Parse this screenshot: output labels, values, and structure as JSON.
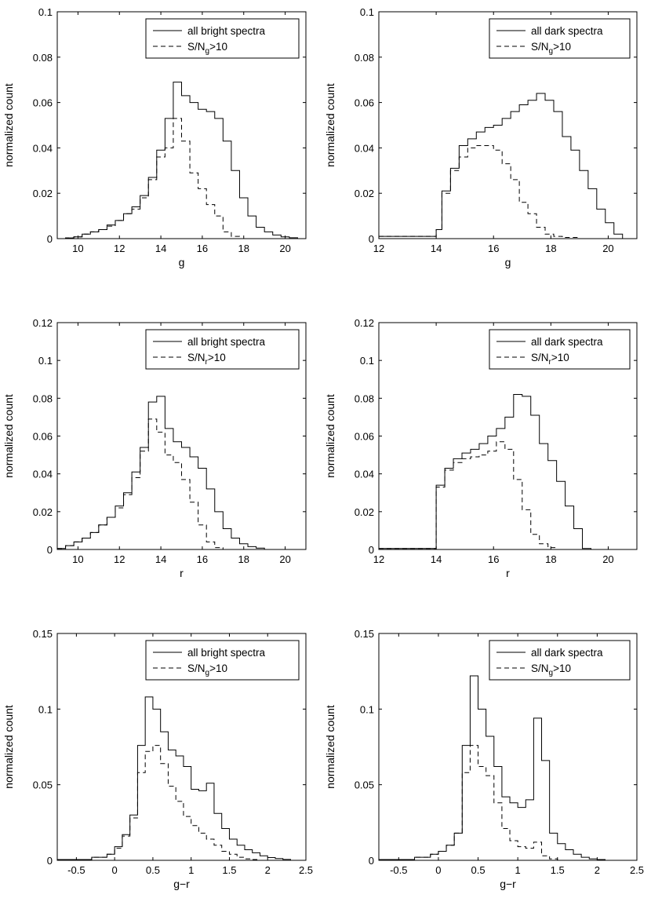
{
  "figure": {
    "width": 830,
    "height": 1144
  },
  "chart_data": [
    {
      "type": "histogram",
      "id": "g-bright",
      "xlabel": "g",
      "ylabel": "normalized count",
      "xlim": [
        9,
        21
      ],
      "ylim": [
        0,
        0.1
      ],
      "xticks": [
        10,
        12,
        14,
        16,
        18,
        20
      ],
      "xtick_labels": [
        "10",
        "12",
        "14",
        "16",
        "18",
        "20"
      ],
      "yticks": [
        0,
        0.02,
        0.04,
        0.06,
        0.08,
        0.1
      ],
      "ytick_labels": [
        "0",
        "0.02",
        "0.04",
        "0.06",
        "0.08",
        "0.1"
      ],
      "legend": {
        "placement": "top-right",
        "entries": [
          {
            "style": "solid",
            "text": "all bright spectra"
          },
          {
            "style": "dashed",
            "text": "S/N",
            "sub": "g",
            "suffix": ">10"
          }
        ]
      },
      "series": [
        {
          "name": "all bright spectra",
          "style": "solid",
          "edges": [
            9,
            9.4,
            9.8,
            10.2,
            10.6,
            11,
            11.4,
            11.8,
            12.2,
            12.6,
            13,
            13.4,
            13.8,
            14.2,
            14.6,
            15,
            15.4,
            15.8,
            16.2,
            16.6,
            17,
            17.4,
            17.8,
            18.2,
            18.6,
            19,
            19.4,
            19.8,
            20.2,
            20.6,
            21
          ],
          "values": [
            0,
            0.0003,
            0.0008,
            0.002,
            0.003,
            0.004,
            0.006,
            0.008,
            0.011,
            0.014,
            0.019,
            0.027,
            0.039,
            0.053,
            0.069,
            0.063,
            0.06,
            0.057,
            0.056,
            0.053,
            0.043,
            0.03,
            0.018,
            0.01,
            0.005,
            0.003,
            0.0016,
            0.0008,
            0.0004,
            0
          ]
        },
        {
          "name": "S/Ng>10",
          "style": "dashed",
          "edges": [
            9,
            9.4,
            9.8,
            10.2,
            10.6,
            11,
            11.4,
            11.8,
            12.2,
            12.6,
            13,
            13.4,
            13.8,
            14.2,
            14.6,
            15,
            15.4,
            15.8,
            16.2,
            16.6,
            17,
            17.4,
            17.8,
            18.2,
            18.6,
            19,
            19.4,
            19.8,
            20.2,
            20.6,
            21
          ],
          "values": [
            0,
            0.0003,
            0.0008,
            0.002,
            0.003,
            0.004,
            0.0055,
            0.008,
            0.011,
            0.013,
            0.018,
            0.026,
            0.036,
            0.04,
            0.053,
            0.043,
            0.029,
            0.022,
            0.015,
            0.01,
            0.003,
            0.001,
            0,
            0,
            0,
            0,
            0,
            0,
            0,
            0
          ]
        }
      ]
    },
    {
      "type": "histogram",
      "id": "g-dark",
      "xlabel": "g",
      "ylabel": "normalized count",
      "xlim": [
        12,
        21
      ],
      "ylim": [
        0,
        0.1
      ],
      "xticks": [
        12,
        14,
        16,
        18,
        20
      ],
      "xtick_labels": [
        "12",
        "14",
        "16",
        "18",
        "20"
      ],
      "yticks": [
        0,
        0.02,
        0.04,
        0.06,
        0.08,
        0.1
      ],
      "ytick_labels": [
        "0",
        "0.02",
        "0.04",
        "0.06",
        "0.08",
        "0.1"
      ],
      "legend": {
        "placement": "top-right",
        "entries": [
          {
            "style": "solid",
            "text": "all dark spectra"
          },
          {
            "style": "dashed",
            "text": "S/N",
            "sub": "g",
            "suffix": ">10"
          }
        ]
      },
      "series": [
        {
          "name": "all dark spectra",
          "style": "solid",
          "edges": [
            12,
            14,
            14.2,
            14.5,
            14.8,
            15.1,
            15.4,
            15.7,
            16,
            16.3,
            16.6,
            16.9,
            17.2,
            17.5,
            17.8,
            18.1,
            18.4,
            18.7,
            19,
            19.3,
            19.6,
            19.9,
            20.2,
            20.5,
            20.8,
            21
          ],
          "values": [
            0.001,
            0.004,
            0.021,
            0.031,
            0.041,
            0.044,
            0.047,
            0.049,
            0.05,
            0.053,
            0.056,
            0.059,
            0.061,
            0.064,
            0.061,
            0.056,
            0.045,
            0.039,
            0.03,
            0.022,
            0.013,
            0.007,
            0.002,
            0,
            0
          ]
        },
        {
          "name": "S/Ng>10",
          "style": "dashed",
          "edges": [
            12,
            14,
            14.2,
            14.5,
            14.8,
            15.1,
            15.4,
            15.7,
            16,
            16.3,
            16.6,
            16.9,
            17.2,
            17.5,
            17.8,
            18.1,
            18.4,
            18.7,
            19,
            19.3,
            19.6,
            19.9,
            20.2,
            20.5,
            20.8,
            21
          ],
          "values": [
            0.001,
            0.004,
            0.02,
            0.03,
            0.036,
            0.04,
            0.041,
            0.041,
            0.039,
            0.033,
            0.026,
            0.016,
            0.011,
            0.005,
            0.002,
            0.001,
            0.0005,
            0.0005,
            0,
            0,
            0,
            0,
            0,
            0,
            0
          ]
        }
      ]
    },
    {
      "type": "histogram",
      "id": "r-bright",
      "xlabel": "r",
      "ylabel": "normalized count",
      "xlim": [
        9,
        21
      ],
      "ylim": [
        0,
        0.12
      ],
      "xticks": [
        10,
        12,
        14,
        16,
        18,
        20
      ],
      "xtick_labels": [
        "10",
        "12",
        "14",
        "16",
        "18",
        "20"
      ],
      "yticks": [
        0,
        0.02,
        0.04,
        0.06,
        0.08,
        0.1,
        0.12
      ],
      "ytick_labels": [
        "0",
        "0.02",
        "0.04",
        "0.06",
        "0.08",
        "0.1",
        "0.12"
      ],
      "legend": {
        "placement": "top-right",
        "entries": [
          {
            "style": "solid",
            "text": "all bright spectra"
          },
          {
            "style": "dashed",
            "text": "S/N",
            "sub": "r",
            "suffix": ">10"
          }
        ]
      },
      "series": [
        {
          "name": "all bright spectra",
          "style": "solid",
          "edges": [
            9,
            9.4,
            9.8,
            10.2,
            10.6,
            11,
            11.4,
            11.8,
            12.2,
            12.6,
            13,
            13.4,
            13.8,
            14.2,
            14.6,
            15,
            15.4,
            15.8,
            16.2,
            16.6,
            17,
            17.4,
            17.8,
            18.2,
            18.6,
            19,
            19.4,
            19.8,
            20.2,
            20.6,
            21
          ],
          "values": [
            0.0005,
            0.002,
            0.004,
            0.006,
            0.009,
            0.013,
            0.017,
            0.023,
            0.03,
            0.041,
            0.054,
            0.078,
            0.081,
            0.064,
            0.057,
            0.054,
            0.049,
            0.043,
            0.032,
            0.02,
            0.011,
            0.006,
            0.003,
            0.0015,
            0.0007,
            0,
            0,
            0,
            0,
            0
          ]
        },
        {
          "name": "S/Nr>10",
          "style": "dashed",
          "edges": [
            9,
            9.4,
            9.8,
            10.2,
            10.6,
            11,
            11.4,
            11.8,
            12.2,
            12.6,
            13,
            13.4,
            13.8,
            14.2,
            14.6,
            15,
            15.4,
            15.8,
            16.2,
            16.6,
            17,
            17.4,
            17.8,
            18.2,
            18.6,
            19,
            19.4,
            19.8,
            20.2,
            20.6,
            21
          ],
          "values": [
            0.0005,
            0.002,
            0.004,
            0.006,
            0.009,
            0.013,
            0.017,
            0.022,
            0.029,
            0.038,
            0.052,
            0.069,
            0.062,
            0.05,
            0.046,
            0.037,
            0.025,
            0.013,
            0.004,
            0.001,
            0,
            0,
            0,
            0,
            0,
            0,
            0,
            0,
            0,
            0
          ]
        }
      ]
    },
    {
      "type": "histogram",
      "id": "r-dark",
      "xlabel": "r",
      "ylabel": "normalized count",
      "xlim": [
        12,
        21
      ],
      "ylim": [
        0,
        0.12
      ],
      "xticks": [
        12,
        14,
        16,
        18,
        20
      ],
      "xtick_labels": [
        "12",
        "14",
        "16",
        "18",
        "20"
      ],
      "yticks": [
        0,
        0.02,
        0.04,
        0.06,
        0.08,
        0.1,
        0.12
      ],
      "ytick_labels": [
        "0",
        "0.02",
        "0.04",
        "0.06",
        "0.08",
        "0.1",
        "0.12"
      ],
      "legend": {
        "placement": "top-right",
        "entries": [
          {
            "style": "solid",
            "text": "all dark spectra"
          },
          {
            "style": "dashed",
            "text": "S/N",
            "sub": "r",
            "suffix": ">10"
          }
        ]
      },
      "series": [
        {
          "name": "all dark spectra",
          "style": "solid",
          "edges": [
            12,
            14,
            14.3,
            14.6,
            14.9,
            15.2,
            15.5,
            15.8,
            16.1,
            16.4,
            16.7,
            17,
            17.3,
            17.6,
            17.9,
            18.2,
            18.5,
            18.8,
            19.1,
            19.4,
            21
          ],
          "values": [
            0.0005,
            0.034,
            0.043,
            0.048,
            0.051,
            0.053,
            0.056,
            0.06,
            0.064,
            0.07,
            0.082,
            0.081,
            0.071,
            0.056,
            0.047,
            0.036,
            0.023,
            0.011,
            0.0005,
            0
          ]
        },
        {
          "name": "S/Nr>10",
          "style": "dashed",
          "edges": [
            12,
            14,
            14.3,
            14.6,
            14.9,
            15.2,
            15.5,
            15.8,
            16.1,
            16.4,
            16.7,
            17,
            17.3,
            17.6,
            17.9,
            18.2,
            18.5,
            18.8,
            19.1,
            19.4,
            21
          ],
          "values": [
            0.0005,
            0.033,
            0.042,
            0.046,
            0.048,
            0.049,
            0.05,
            0.052,
            0.057,
            0.053,
            0.037,
            0.021,
            0.008,
            0.003,
            0.001,
            0,
            0,
            0,
            0,
            0
          ]
        }
      ]
    },
    {
      "type": "histogram",
      "id": "gr-bright",
      "xlabel": "g−r",
      "ylabel": "normalized count",
      "xlim": [
        -0.75,
        2.5
      ],
      "ylim": [
        0,
        0.15
      ],
      "xticks": [
        -0.5,
        0,
        0.5,
        1,
        1.5,
        2,
        2.5
      ],
      "xtick_labels": [
        "-0.5",
        "0",
        "0.5",
        "1",
        "1.5",
        "2",
        "2.5"
      ],
      "yticks": [
        0,
        0.05,
        0.1,
        0.15
      ],
      "ytick_labels": [
        "0",
        "0.05",
        "0.1",
        "0.15"
      ],
      "legend": {
        "placement": "top-right",
        "entries": [
          {
            "style": "solid",
            "text": "all bright spectra"
          },
          {
            "style": "dashed",
            "text": "S/N",
            "sub": "g",
            "suffix": ">10"
          }
        ]
      },
      "series": [
        {
          "name": "all bright spectra",
          "style": "solid",
          "edges": [
            -0.75,
            -0.3,
            -0.1,
            0,
            0.1,
            0.2,
            0.3,
            0.4,
            0.5,
            0.6,
            0.7,
            0.8,
            0.9,
            1,
            1.1,
            1.2,
            1.3,
            1.4,
            1.5,
            1.6,
            1.7,
            1.8,
            1.9,
            2,
            2.1,
            2.2,
            2.3,
            2.5
          ],
          "values": [
            0.0005,
            0.002,
            0.004,
            0.009,
            0.017,
            0.03,
            0.076,
            0.108,
            0.1,
            0.085,
            0.073,
            0.069,
            0.062,
            0.047,
            0.046,
            0.051,
            0.031,
            0.021,
            0.014,
            0.01,
            0.007,
            0.005,
            0.003,
            0.0018,
            0.0012,
            0.0006,
            0
          ]
        },
        {
          "name": "S/Ng>10",
          "style": "dashed",
          "edges": [
            -0.75,
            -0.3,
            -0.1,
            0,
            0.1,
            0.2,
            0.3,
            0.4,
            0.5,
            0.6,
            0.7,
            0.8,
            0.9,
            1,
            1.1,
            1.2,
            1.3,
            1.4,
            1.5,
            1.6,
            1.7,
            1.8,
            1.9,
            2,
            2.1,
            2.2,
            2.3,
            2.5
          ],
          "values": [
            0.0005,
            0.002,
            0.004,
            0.008,
            0.016,
            0.028,
            0.058,
            0.072,
            0.076,
            0.064,
            0.049,
            0.039,
            0.029,
            0.023,
            0.018,
            0.014,
            0.01,
            0.006,
            0.004,
            0.002,
            0.001,
            0.0005,
            0,
            0,
            0,
            0,
            0
          ]
        }
      ]
    },
    {
      "type": "histogram",
      "id": "gr-dark",
      "xlabel": "g−r",
      "ylabel": "normalized count",
      "xlim": [
        -0.75,
        2.5
      ],
      "ylim": [
        0,
        0.15
      ],
      "xticks": [
        -0.5,
        0,
        0.5,
        1,
        1.5,
        2,
        2.5
      ],
      "xtick_labels": [
        "-0.5",
        "0",
        "0.5",
        "1",
        "1.5",
        "2",
        "2.5"
      ],
      "yticks": [
        0,
        0.05,
        0.1,
        0.15
      ],
      "ytick_labels": [
        "0",
        "0.05",
        "0.1",
        "0.15"
      ],
      "legend": {
        "placement": "top-right",
        "entries": [
          {
            "style": "solid",
            "text": "all dark spectra"
          },
          {
            "style": "dashed",
            "text": "S/N",
            "sub": "g",
            "suffix": ">10"
          }
        ]
      },
      "series": [
        {
          "name": "all dark spectra",
          "style": "solid",
          "edges": [
            -0.75,
            -0.3,
            -0.1,
            0,
            0.1,
            0.2,
            0.3,
            0.4,
            0.5,
            0.6,
            0.7,
            0.8,
            0.9,
            1,
            1.1,
            1.2,
            1.3,
            1.4,
            1.5,
            1.6,
            1.7,
            1.8,
            1.9,
            2,
            2.1,
            2.2,
            2.5
          ],
          "values": [
            0.0005,
            0.002,
            0.004,
            0.006,
            0.01,
            0.018,
            0.076,
            0.122,
            0.1,
            0.082,
            0.062,
            0.042,
            0.038,
            0.035,
            0.04,
            0.094,
            0.066,
            0.018,
            0.011,
            0.007,
            0.004,
            0.002,
            0.001,
            0.0005,
            0,
            0
          ]
        },
        {
          "name": "S/Ng>10",
          "style": "dashed",
          "edges": [
            -0.75,
            -0.3,
            -0.1,
            0,
            0.1,
            0.2,
            0.3,
            0.4,
            0.5,
            0.6,
            0.7,
            0.8,
            0.9,
            1,
            1.1,
            1.2,
            1.3,
            1.4,
            1.5,
            1.6,
            1.7,
            1.8,
            1.9,
            2,
            2.1,
            2.2,
            2.5
          ],
          "values": [
            0.0005,
            0.002,
            0.004,
            0.006,
            0.01,
            0.018,
            0.058,
            0.076,
            0.062,
            0.056,
            0.038,
            0.021,
            0.013,
            0.009,
            0.008,
            0.012,
            0.003,
            0.001,
            0,
            0,
            0,
            0,
            0,
            0,
            0,
            0
          ]
        }
      ]
    }
  ]
}
